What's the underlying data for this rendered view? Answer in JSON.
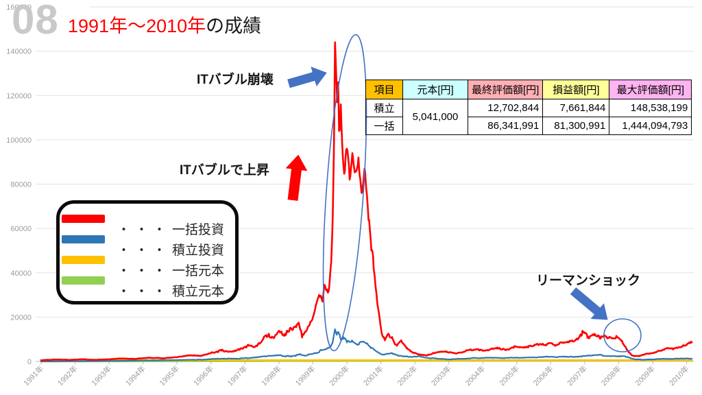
{
  "slide": {
    "number": "08",
    "title_highlight": "1991年～2010年",
    "title_rest": "の成績"
  },
  "annotations": {
    "it_bubble_burst": "ITバブル崩壊",
    "it_bubble_rise": "ITバブルで上昇",
    "lehman_shock": "リーマンショック"
  },
  "table": {
    "headers": [
      "項目",
      "元本[円]",
      "最終評価額[円]",
      "損益額[円]",
      "最大評価額[円]"
    ],
    "header_colors": [
      "#FFC000",
      "#CCFFFF",
      "#FFB0B5",
      "#FFFF99",
      "#FFB3F0"
    ],
    "principal_merged": "5,041,000",
    "rows": [
      {
        "label": "積立",
        "final": "12,702,844",
        "profit": "7,661,844",
        "max": "148,538,199"
      },
      {
        "label": "一括",
        "final": "86,341,991",
        "profit": "81,300,991",
        "max": "1,444,094,793"
      }
    ]
  },
  "legend": {
    "items": [
      {
        "dots": "・・・",
        "label": "一括投資",
        "color": "#FF0000"
      },
      {
        "dots": "・・・",
        "label": "積立投資",
        "color": "#2E75B6"
      },
      {
        "dots": "・・・",
        "label": "一括元本",
        "color": "#FFC000"
      },
      {
        "dots": "・・・",
        "label": "積立元本",
        "color": "#92D050"
      }
    ]
  },
  "chart_data": {
    "type": "line",
    "title": "1991年～2010年の成績",
    "x_labels": [
      "1991年",
      "1992年",
      "1993年",
      "1994年",
      "1995年",
      "1996年",
      "1997年",
      "1998年",
      "1999年",
      "2000年",
      "2001年",
      "2002年",
      "2003年",
      "2004年",
      "2005年",
      "2006年",
      "2007年",
      "2008年",
      "2009年",
      "2010年"
    ],
    "y_ticks": [
      0,
      20000,
      40000,
      60000,
      80000,
      100000,
      120000,
      140000,
      160000
    ],
    "ylim": [
      0,
      160000
    ],
    "grid": true,
    "series": [
      {
        "id": "lump-sum-investment",
        "name": "一括投資",
        "color": "#FF0000",
        "points": [
          [
            1991.0,
            500
          ],
          [
            1991.4,
            850
          ],
          [
            1991.8,
            650
          ],
          [
            1992.2,
            950
          ],
          [
            1992.6,
            700
          ],
          [
            1993.0,
            950
          ],
          [
            1993.4,
            1300
          ],
          [
            1993.8,
            1150
          ],
          [
            1994.2,
            1650
          ],
          [
            1994.6,
            1400
          ],
          [
            1995.0,
            1900
          ],
          [
            1995.4,
            2800
          ],
          [
            1995.7,
            2400
          ],
          [
            1996.0,
            3700
          ],
          [
            1996.3,
            4900
          ],
          [
            1996.6,
            4400
          ],
          [
            1996.9,
            5900
          ],
          [
            1997.1,
            7500
          ],
          [
            1997.3,
            6700
          ],
          [
            1997.5,
            9200
          ],
          [
            1997.7,
            12500
          ],
          [
            1997.85,
            10500
          ],
          [
            1998.0,
            13800
          ],
          [
            1998.15,
            11500
          ],
          [
            1998.3,
            13500
          ],
          [
            1998.45,
            15500
          ],
          [
            1998.58,
            17500
          ],
          [
            1998.68,
            10800
          ],
          [
            1998.85,
            15500
          ],
          [
            1999.0,
            20000
          ],
          [
            1999.1,
            26000
          ],
          [
            1999.18,
            30000
          ],
          [
            1999.28,
            27000
          ],
          [
            1999.36,
            34000
          ],
          [
            1999.44,
            31000
          ],
          [
            1999.5,
            38000
          ],
          [
            1999.54,
            45000
          ],
          [
            1999.57,
            58000
          ],
          [
            1999.6,
            80000
          ],
          [
            1999.63,
            112000
          ],
          [
            1999.65,
            144000
          ],
          [
            1999.68,
            131000
          ],
          [
            1999.71,
            117000
          ],
          [
            1999.74,
            126000
          ],
          [
            1999.77,
            104000
          ],
          [
            1999.82,
            116000
          ],
          [
            1999.88,
            92000
          ],
          [
            1999.94,
            86000
          ],
          [
            2000.0,
            96000
          ],
          [
            2000.08,
            82000
          ],
          [
            2000.16,
            94000
          ],
          [
            2000.25,
            86000
          ],
          [
            2000.34,
            92000
          ],
          [
            2000.43,
            76000
          ],
          [
            2000.52,
            87000
          ],
          [
            2000.62,
            68000
          ],
          [
            2000.72,
            50000
          ],
          [
            2000.82,
            38000
          ],
          [
            2000.92,
            24000
          ],
          [
            2001.02,
            13000
          ],
          [
            2001.12,
            9500
          ],
          [
            2001.22,
            12500
          ],
          [
            2001.33,
            11000
          ],
          [
            2001.45,
            7500
          ],
          [
            2001.6,
            9500
          ],
          [
            2001.75,
            6000
          ],
          [
            2001.95,
            3800
          ],
          [
            2002.15,
            3000
          ],
          [
            2002.35,
            2700
          ],
          [
            2002.6,
            3800
          ],
          [
            2002.9,
            4300
          ],
          [
            2003.2,
            3600
          ],
          [
            2003.5,
            4800
          ],
          [
            2003.8,
            5400
          ],
          [
            2004.1,
            5000
          ],
          [
            2004.4,
            5800
          ],
          [
            2004.7,
            5400
          ],
          [
            2004.95,
            6800
          ],
          [
            2005.2,
            6200
          ],
          [
            2005.5,
            7000
          ],
          [
            2005.75,
            7600
          ],
          [
            2005.95,
            8200
          ],
          [
            2006.15,
            7400
          ],
          [
            2006.4,
            8400
          ],
          [
            2006.7,
            9200
          ],
          [
            2006.95,
            13000
          ],
          [
            2007.1,
            11200
          ],
          [
            2007.25,
            12200
          ],
          [
            2007.45,
            10200
          ],
          [
            2007.6,
            11400
          ],
          [
            2007.8,
            10400
          ],
          [
            2007.95,
            11000
          ],
          [
            2008.1,
            9200
          ],
          [
            2008.25,
            5200
          ],
          [
            2008.4,
            2600
          ],
          [
            2008.6,
            2300
          ],
          [
            2008.8,
            3400
          ],
          [
            2009.0,
            3800
          ],
          [
            2009.2,
            4800
          ],
          [
            2009.45,
            6000
          ],
          [
            2009.6,
            5400
          ],
          [
            2009.8,
            6400
          ],
          [
            2010.0,
            7400
          ],
          [
            2010.15,
            8600
          ]
        ]
      },
      {
        "id": "monthly-investment",
        "name": "積立投資",
        "color": "#2E75B6",
        "points": [
          [
            1991.0,
            10
          ],
          [
            1992.0,
            90
          ],
          [
            1993.0,
            220
          ],
          [
            1994.0,
            400
          ],
          [
            1995.0,
            600
          ],
          [
            1995.5,
            750
          ],
          [
            1996.0,
            1000
          ],
          [
            1996.4,
            1300
          ],
          [
            1996.8,
            1150
          ],
          [
            1997.2,
            1700
          ],
          [
            1997.6,
            2200
          ],
          [
            1998.0,
            2700
          ],
          [
            1998.3,
            2200
          ],
          [
            1998.6,
            3000
          ],
          [
            1998.8,
            2600
          ],
          [
            1999.0,
            3500
          ],
          [
            1999.2,
            4700
          ],
          [
            1999.4,
            5500
          ],
          [
            1999.5,
            6500
          ],
          [
            1999.58,
            8500
          ],
          [
            1999.65,
            14500
          ],
          [
            1999.7,
            12000
          ],
          [
            1999.75,
            13200
          ],
          [
            1999.82,
            9800
          ],
          [
            1999.9,
            11000
          ],
          [
            2000.0,
            8500
          ],
          [
            2000.15,
            9500
          ],
          [
            2000.3,
            7800
          ],
          [
            2000.5,
            8800
          ],
          [
            2000.7,
            6000
          ],
          [
            2000.9,
            4200
          ],
          [
            2001.1,
            3000
          ],
          [
            2001.3,
            3600
          ],
          [
            2001.5,
            2600
          ],
          [
            2001.8,
            2100
          ],
          [
            2002.1,
            2300
          ],
          [
            2002.4,
            1500
          ],
          [
            2002.7,
            1200
          ],
          [
            2003.0,
            900
          ],
          [
            2003.4,
            1200
          ],
          [
            2003.8,
            1500
          ],
          [
            2004.2,
            1700
          ],
          [
            2004.6,
            1500
          ],
          [
            2005.0,
            1600
          ],
          [
            2005.5,
            1800
          ],
          [
            2006.0,
            2100
          ],
          [
            2006.5,
            2000
          ],
          [
            2007.0,
            2400
          ],
          [
            2007.4,
            2900
          ],
          [
            2007.7,
            2400
          ],
          [
            2008.0,
            2500
          ],
          [
            2008.25,
            2100
          ],
          [
            2008.5,
            900
          ],
          [
            2008.8,
            800
          ],
          [
            2009.1,
            1000
          ],
          [
            2009.45,
            1150
          ],
          [
            2009.8,
            1250
          ],
          [
            2010.15,
            1270
          ]
        ]
      },
      {
        "id": "lump-sum-principal",
        "name": "一括元本",
        "color": "#FFC000",
        "points": [
          [
            1991.0,
            504
          ],
          [
            2010.15,
            504
          ]
        ]
      },
      {
        "id": "monthly-principal",
        "name": "積立元本",
        "color": "#92D050",
        "points": [
          [
            1991.0,
            0
          ],
          [
            2010.15,
            504
          ]
        ]
      }
    ]
  }
}
